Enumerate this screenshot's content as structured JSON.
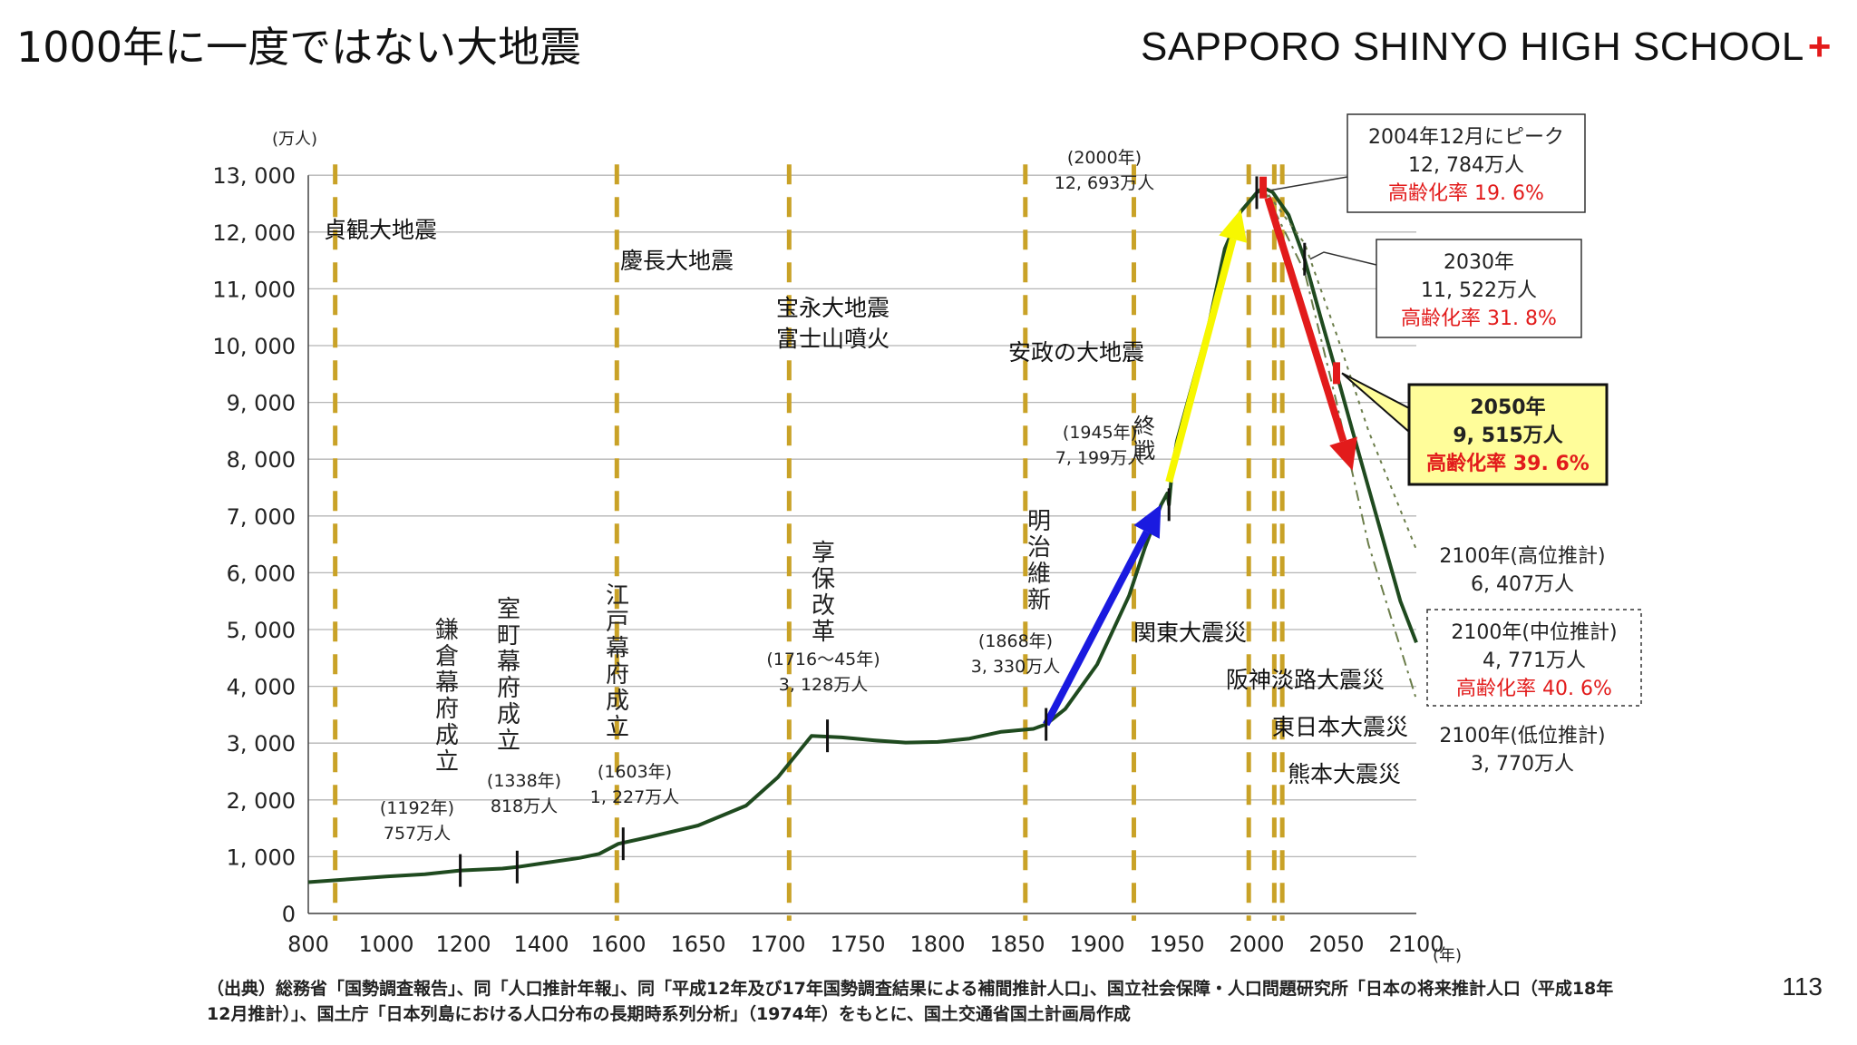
{
  "slide": {
    "title": "1000年に一度ではない大地震",
    "school": "SAPPORO SHINYO HIGH SCHOOL",
    "school_mark": "+",
    "page_number": "113",
    "source": "（出典）総務省「国勢調査報告」、同「人口推計年報」、同「平成12年及び17年国勢調査結果による補間推計人口」、国立社会保障・人口問題研究所「日本の将来推計人口（平成18年12月推計）」、国土庁「日本列島における人口分布の長期時系列分析」（1974年）をもとに、国土交通省国土計画局作成"
  },
  "colors": {
    "line": "#1f4a1f",
    "grid": "#b5b5b5",
    "quake": "#c9a227",
    "red": "#e21b1b",
    "blue": "#1a1ae0",
    "yellow": "#f7f700"
  },
  "chart_data": {
    "type": "line",
    "y_unit": "(万人)",
    "x_unit": "(年)",
    "ylim": [
      0,
      13000
    ],
    "y_ticks": [
      0,
      1000,
      2000,
      3000,
      4000,
      5000,
      6000,
      7000,
      8000,
      9000,
      10000,
      11000,
      12000,
      13000
    ],
    "y_tick_labels": [
      "0",
      "1, 000",
      "2, 000",
      "3, 000",
      "4, 000",
      "5, 000",
      "6, 000",
      "7, 000",
      "8, 000",
      "9, 000",
      "10, 000",
      "11, 000",
      "12, 000",
      "13, 000"
    ],
    "x_ticks": [
      800,
      1000,
      1200,
      1400,
      1600,
      1650,
      1700,
      1750,
      1800,
      1850,
      1900,
      1950,
      2000,
      2050,
      2100
    ],
    "x_scale_note": "piecewise: 800-1600 compressed, 1600-2100 linear",
    "series": [
      {
        "role": "actual",
        "points": [
          [
            800,
            551
          ],
          [
            900,
            600
          ],
          [
            1000,
            650
          ],
          [
            1100,
            690
          ],
          [
            1192,
            757
          ],
          [
            1300,
            790
          ],
          [
            1338,
            818
          ],
          [
            1400,
            880
          ],
          [
            1500,
            980
          ],
          [
            1550,
            1050
          ],
          [
            1600,
            1227
          ],
          [
            1620,
            1350
          ],
          [
            1650,
            1550
          ],
          [
            1680,
            1900
          ],
          [
            1700,
            2400
          ],
          [
            1721,
            3128
          ],
          [
            1740,
            3100
          ],
          [
            1760,
            3050
          ],
          [
            1780,
            3010
          ],
          [
            1800,
            3020
          ],
          [
            1820,
            3080
          ],
          [
            1840,
            3200
          ],
          [
            1860,
            3250
          ],
          [
            1868,
            3330
          ],
          [
            1880,
            3600
          ],
          [
            1900,
            4385
          ],
          [
            1920,
            5596
          ],
          [
            1930,
            6445
          ],
          [
            1940,
            7193
          ],
          [
            1944,
            7400
          ],
          [
            1945,
            7199
          ],
          [
            1947,
            7810
          ],
          [
            1950,
            8320
          ],
          [
            1960,
            9342
          ],
          [
            1970,
            10372
          ],
          [
            1980,
            11706
          ],
          [
            1990,
            12361
          ],
          [
            2000,
            12693
          ],
          [
            2004,
            12784
          ],
          [
            2010,
            12700
          ],
          [
            2020,
            12300
          ],
          [
            2030,
            11522
          ],
          [
            2040,
            10500
          ],
          [
            2050,
            9515
          ],
          [
            2060,
            8500
          ],
          [
            2070,
            7500
          ],
          [
            2080,
            6500
          ],
          [
            2090,
            5500
          ],
          [
            2100,
            4771
          ]
        ]
      },
      {
        "role": "high",
        "points": [
          [
            2004,
            12784
          ],
          [
            2030,
            11800
          ],
          [
            2050,
            10200
          ],
          [
            2070,
            8500
          ],
          [
            2100,
            6407
          ]
        ]
      },
      {
        "role": "low",
        "points": [
          [
            2004,
            12784
          ],
          [
            2030,
            11300
          ],
          [
            2050,
            9000
          ],
          [
            2070,
            6500
          ],
          [
            2100,
            3770
          ]
        ]
      }
    ],
    "earthquake_years": [
      869,
      1596,
      1707,
      1855,
      1923,
      1995,
      2011,
      2016
    ],
    "markers": [
      {
        "x": 1192,
        "label": "鎌倉幕府成立",
        "year": "(1192年)",
        "value": "757万人"
      },
      {
        "x": 1338,
        "label": "室町幕府成立",
        "year": "(1338年)",
        "value": "818万人"
      },
      {
        "x": 1603,
        "label": "江戸幕府成立",
        "year": "(1603年)",
        "value": "1, 227万人"
      },
      {
        "x": 1731,
        "label": "享保改革",
        "year": "(1716～45年)",
        "value": "3, 128万人"
      },
      {
        "x": 1868,
        "label": "明治維新",
        "year": "(1868年)",
        "value": "3, 330万人"
      },
      {
        "x": 1945,
        "label": "終戦",
        "year": "(1945年)",
        "value": "7, 199万人"
      },
      {
        "x": 2000,
        "year": "(2000年)",
        "value": "12, 693万人"
      }
    ],
    "quake_labels": [
      {
        "text": "貞観大地震"
      },
      {
        "text": "慶長大地震"
      },
      {
        "text": "宝永大地震"
      },
      {
        "text": "富士山噴火"
      },
      {
        "text": "安政の大地震"
      },
      {
        "text": "関東大震災"
      },
      {
        "text": "阪神淡路大震災"
      },
      {
        "text": "東日本大震災"
      },
      {
        "text": "熊本大震災"
      }
    ],
    "callouts": {
      "peak": {
        "l1": "2004年12月にピーク",
        "l2": "12, 784万人",
        "l3": "高齢化率 19. 6%"
      },
      "y2030": {
        "l1": "2030年",
        "l2": "11, 522万人",
        "l3": "高齢化率 31. 8%"
      },
      "y2050": {
        "l1": "2050年",
        "l2": "9, 515万人",
        "l3": "高齢化率 39. 6%"
      },
      "high": {
        "l1": "2100年(高位推計)",
        "l2": "6, 407万人"
      },
      "mid": {
        "l1": "2100年(中位推計)",
        "l2": "4, 771万人",
        "l3": "高齢化率 40. 6%"
      },
      "low": {
        "l1": "2100年(低位推計)",
        "l2": "3, 770万人"
      }
    }
  }
}
